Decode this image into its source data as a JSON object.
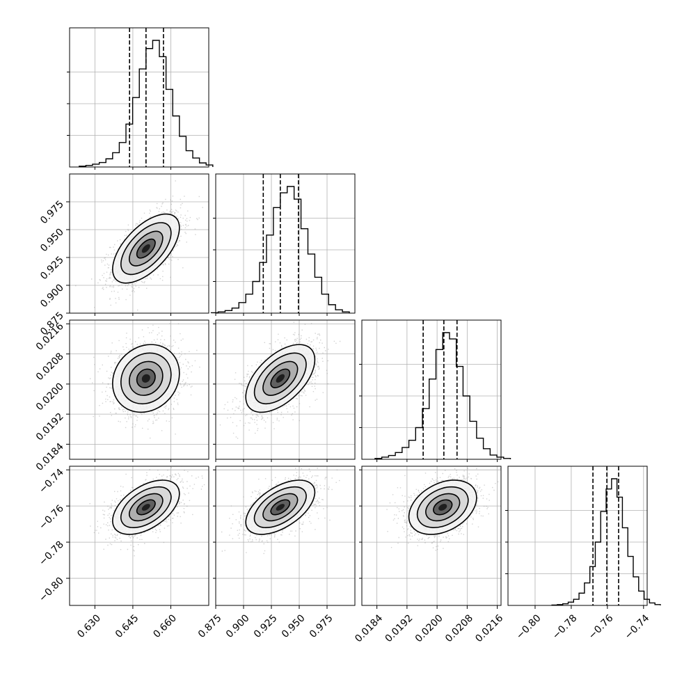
{
  "chart_data": {
    "type": "corner",
    "grid": true,
    "colors": {
      "line": "#000000",
      "grid": "#b0b0b0",
      "scatter": "#9a9a9a"
    },
    "parameters": [
      {
        "index": 0,
        "range": [
          0.62,
          0.675
        ],
        "ticks": [
          0.63,
          0.645,
          0.66
        ],
        "tick_labels": [
          "0.630",
          "0.645",
          "0.660"
        ],
        "quantiles": [
          0.6437,
          0.6502,
          0.6571
        ],
        "mean": 0.6502,
        "std": 0.0066
      },
      {
        "index": 1,
        "range": [
          0.875,
          1.0
        ],
        "ticks": [
          0.875,
          0.9,
          0.925,
          0.95,
          0.975
        ],
        "tick_labels": [
          "0.875",
          "0.900",
          "0.925",
          "0.950",
          "0.975"
        ],
        "quantiles": [
          0.9177,
          0.933,
          0.9493
        ],
        "mean": 0.933,
        "std": 0.0155
      },
      {
        "index": 2,
        "range": [
          0.018,
          0.0217
        ],
        "ticks": [
          0.0184,
          0.0192,
          0.02,
          0.0208,
          0.0216
        ],
        "tick_labels": [
          "0.0184",
          "0.0192",
          "0.0200",
          "0.0208",
          "0.0216"
        ],
        "quantiles": [
          0.01963,
          0.02018,
          0.02053
        ],
        "mean": 0.02015,
        "std": 0.00045
      },
      {
        "index": 3,
        "range": [
          -0.815,
          -0.738
        ],
        "ticks": [
          -0.8,
          -0.78,
          -0.76,
          -0.74
        ],
        "tick_labels": [
          "−0.80",
          "−0.78",
          "−0.76",
          "−0.74"
        ],
        "quantiles": [
          -0.768,
          -0.7603,
          -0.7538
        ],
        "mean": -0.7607,
        "std": 0.0075
      }
    ],
    "histograms": [
      {
        "param": 0,
        "counts": [
          2,
          4,
          7,
          11,
          20,
          35,
          60,
          105,
          170,
          240,
          290,
          310,
          270,
          190,
          125,
          75,
          40,
          22,
          10,
          5
        ]
      },
      {
        "param": 1,
        "counts": [
          1,
          3,
          6,
          12,
          25,
          45,
          75,
          120,
          185,
          250,
          285,
          300,
          270,
          200,
          140,
          85,
          45,
          20,
          8,
          3
        ]
      },
      {
        "param": 2,
        "counts": [
          2,
          5,
          9,
          16,
          28,
          45,
          75,
          120,
          190,
          260,
          300,
          285,
          220,
          150,
          90,
          50,
          25,
          10,
          5,
          2
        ]
      },
      {
        "param": 3,
        "counts": [
          1,
          2,
          4,
          8,
          15,
          30,
          55,
          95,
          155,
          230,
          285,
          310,
          265,
          190,
          120,
          70,
          35,
          15,
          6,
          2
        ]
      }
    ],
    "pairs": [
      {
        "x": 0,
        "y": 1,
        "correlation": 0.6
      },
      {
        "x": 0,
        "y": 2,
        "correlation": 0.15
      },
      {
        "x": 1,
        "y": 2,
        "correlation": 0.55
      },
      {
        "x": 0,
        "y": 3,
        "correlation": 0.5
      },
      {
        "x": 1,
        "y": 3,
        "correlation": 0.55
      },
      {
        "x": 2,
        "y": 3,
        "correlation": 0.35
      }
    ]
  }
}
